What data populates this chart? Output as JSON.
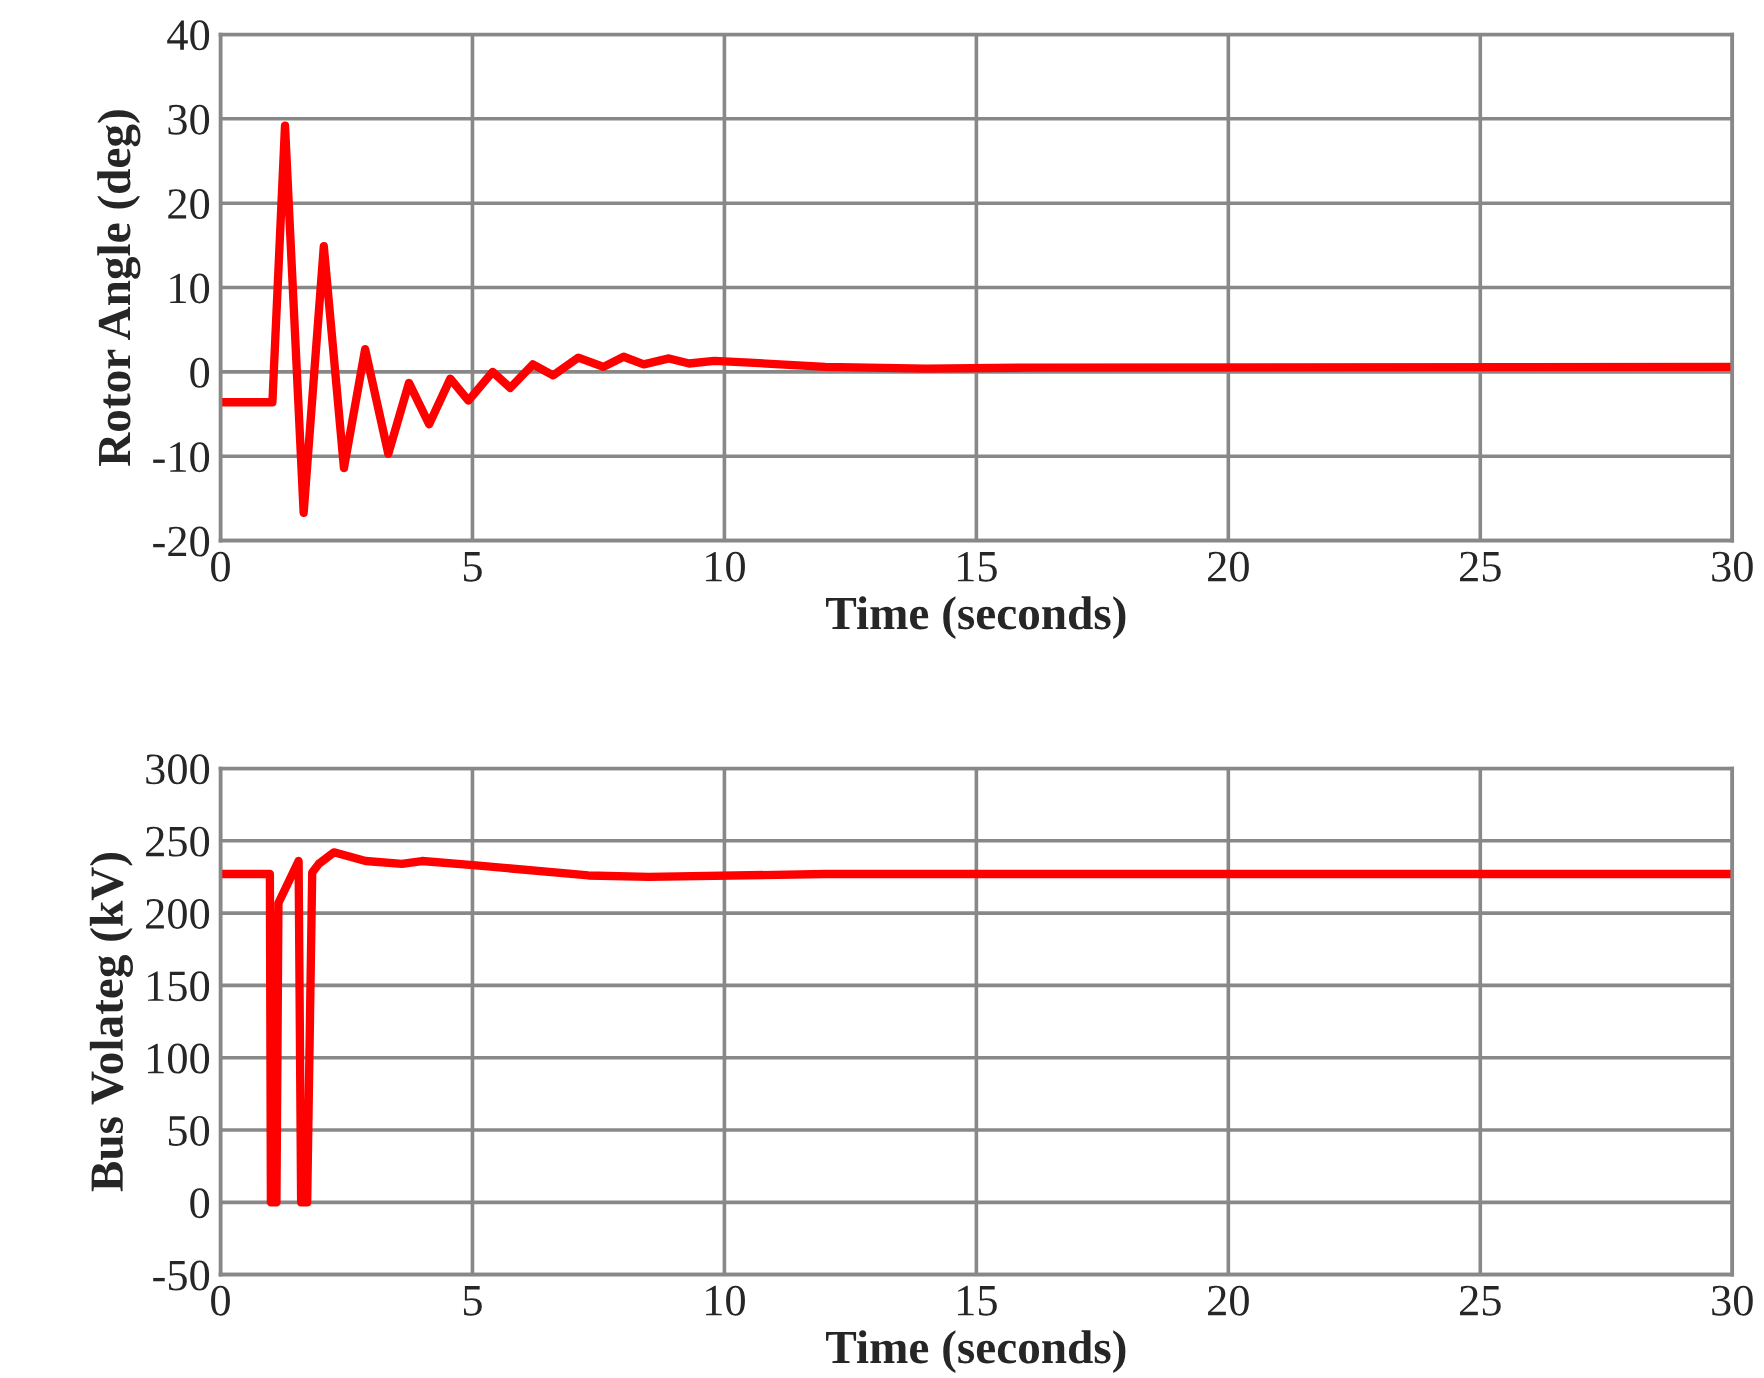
{
  "chart_data": [
    {
      "type": "line",
      "xlabel": "Time (seconds)",
      "ylabel": "Rotor Angle (deg)",
      "xlim": [
        0,
        30
      ],
      "xticks": [
        0,
        5,
        10,
        15,
        20,
        25,
        30
      ],
      "ylim": [
        -20,
        40
      ],
      "yticks": [
        -20,
        -10,
        0,
        10,
        20,
        30,
        40
      ],
      "grid": true,
      "legend": false,
      "series": [
        {
          "color": "#ff0000",
          "x": [
            0,
            1.03,
            1.28,
            1.65,
            2.05,
            2.45,
            2.87,
            3.33,
            3.74,
            4.14,
            4.56,
            4.92,
            5.4,
            5.75,
            6.2,
            6.6,
            7.1,
            7.6,
            8.0,
            8.4,
            8.9,
            9.3,
            9.8,
            10.5,
            12,
            14,
            16,
            30
          ],
          "values": [
            -3.6,
            -3.6,
            29.2,
            -16.7,
            14.9,
            -11.4,
            2.7,
            -9.7,
            -1.3,
            -6.2,
            -0.8,
            -3.4,
            0,
            -1.9,
            0.9,
            -0.4,
            1.7,
            0.6,
            1.8,
            0.9,
            1.6,
            1.0,
            1.3,
            1.1,
            0.6,
            0.4,
            0.5,
            0.6
          ]
        }
      ]
    },
    {
      "type": "line",
      "xlabel": "Time (seconds)",
      "ylabel": "Bus Volateg (kV)",
      "xlim": [
        0,
        30
      ],
      "xticks": [
        0,
        5,
        10,
        15,
        20,
        25,
        30
      ],
      "ylim": [
        -50,
        300
      ],
      "yticks": [
        -50,
        0,
        50,
        100,
        150,
        200,
        250,
        300
      ],
      "grid": true,
      "legend": false,
      "series": [
        {
          "color": "#ff0000",
          "x": [
            0,
            0.98,
            1.0,
            1.11,
            1.15,
            1.55,
            1.6,
            1.72,
            1.82,
            1.95,
            2.25,
            2.88,
            3.6,
            4.0,
            5.07,
            7.3,
            8.5,
            12,
            30
          ],
          "values": [
            227,
            227,
            0,
            0,
            207,
            236,
            0,
            0,
            228,
            234,
            242,
            236,
            234,
            236,
            233,
            226,
            225,
            227,
            227
          ]
        }
      ]
    }
  ]
}
